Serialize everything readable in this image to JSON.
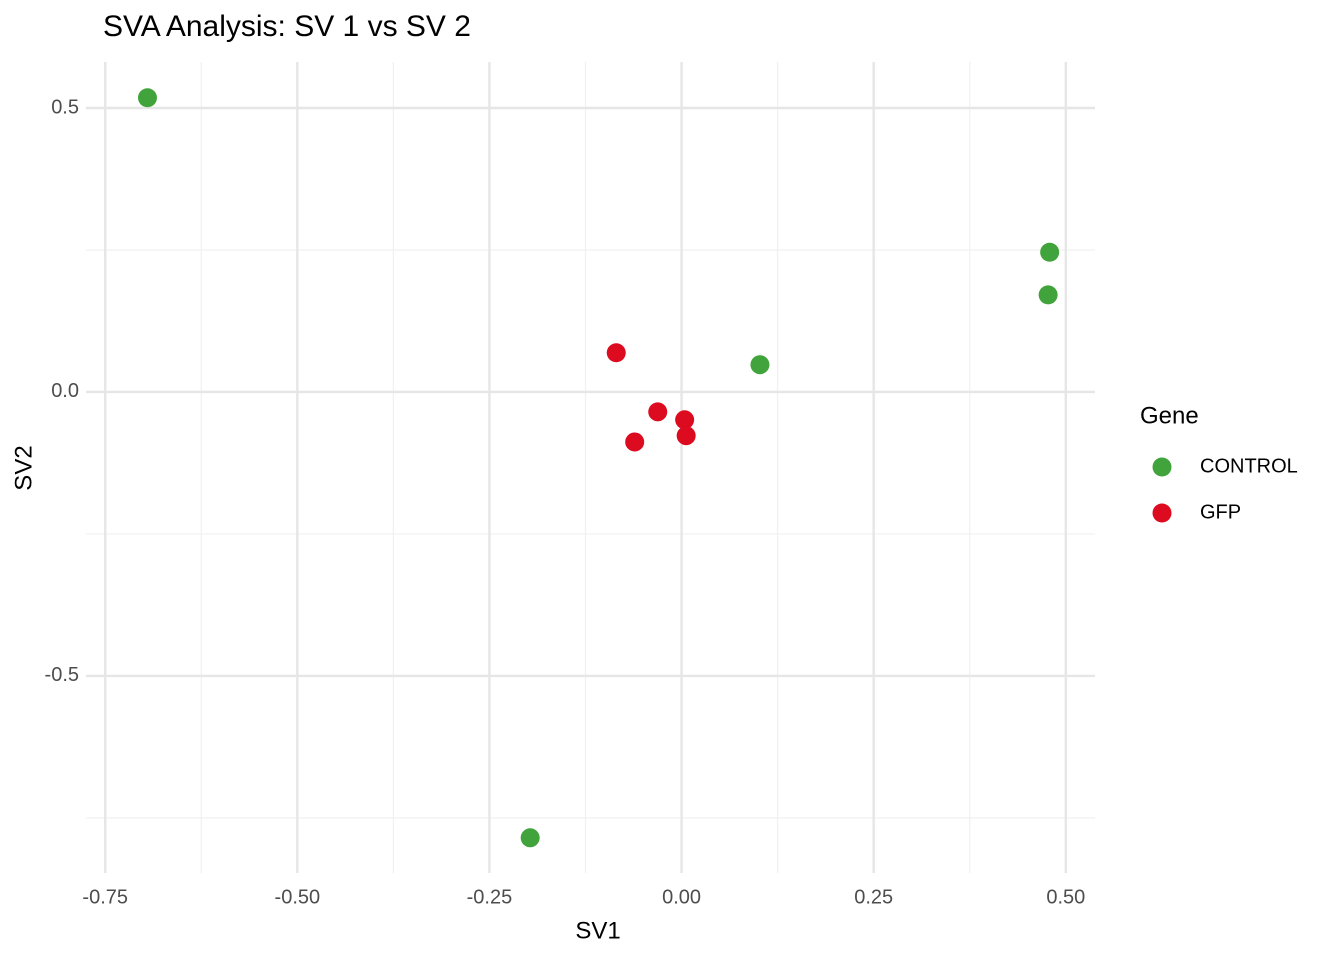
{
  "chart_data": {
    "type": "scatter",
    "title": "SVA Analysis: SV 1  vs SV 2",
    "x_label": "SV1",
    "y_label": "SV2",
    "legend_title": "Gene",
    "legend_position": "right",
    "grid": true,
    "minor_grid": true,
    "xlim": [
      -0.775,
      0.538
    ],
    "ylim": [
      -0.847,
      0.581
    ],
    "xticks": [
      -0.75,
      {
        "value": -0.5,
        "label": "-0.50"
      },
      -0.25,
      {
        "value": 0,
        "label": "0.00"
      },
      0.25,
      {
        "value": 0.5,
        "label": "0.50"
      }
    ],
    "yticks": [
      {
        "value": 0.5,
        "label": "0.5"
      },
      {
        "value": 0,
        "label": "0.0"
      },
      {
        "value": -0.5,
        "label": "-0.5"
      }
    ],
    "series": [
      {
        "name": "CONTROL",
        "color": "#41a33b",
        "x": [
          -0.695,
          0.479,
          0.477,
          0.102,
          -0.197
        ],
        "values": [
          0.518,
          0.246,
          0.171,
          0.048,
          -0.785
        ]
      },
      {
        "name": "GFP",
        "color": "#dc0b1f",
        "x": [
          -0.085,
          -0.031,
          0.004,
          0.006,
          -0.061
        ],
        "values": [
          0.069,
          -0.035,
          -0.049,
          -0.077,
          -0.088
        ]
      }
    ]
  }
}
